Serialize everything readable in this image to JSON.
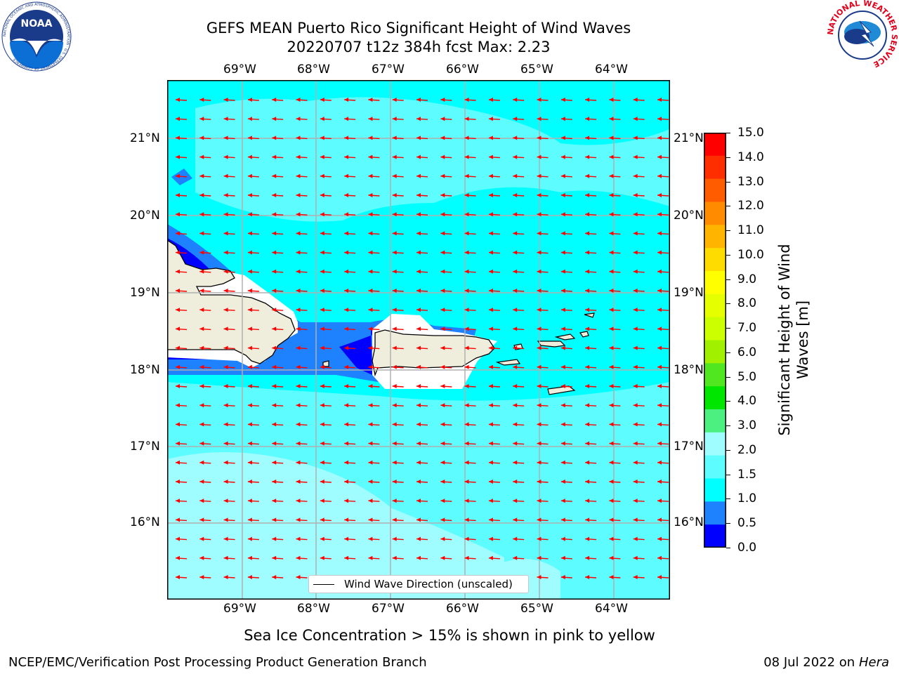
{
  "title": {
    "line1": "GEFS MEAN Puerto Rico Significant Height of Wind Waves",
    "line2": "20220707 t12z 384h fcst   Max: 2.23"
  },
  "map": {
    "lon_labels": [
      "69°W",
      "68°W",
      "67°W",
      "66°W",
      "65°W",
      "64°W"
    ],
    "lat_labels": [
      "21°N",
      "20°N",
      "19°N",
      "18°N",
      "17°N",
      "16°N"
    ],
    "legend_label": "Wind Wave Direction (unscaled)",
    "colors": {
      "ocean_base": "#00ffff",
      "ocean_low": "#9ffcff",
      "land": "#efeedc",
      "shallow": "#1e82ff",
      "very_low": "#0000ff",
      "arrow": "#ff0000",
      "grid": "#b0b0b0"
    }
  },
  "colorbar": {
    "label": "Significant Height of Wind Waves [m]",
    "label_line1": "Significant Height of Wind",
    "label_line2": "Waves [m]",
    "ticks": [
      "15.0",
      "14.0",
      "13.0",
      "12.0",
      "11.0",
      "10.0",
      "9.0",
      "8.0",
      "7.0",
      "6.0",
      "5.0",
      "4.0",
      "3.0",
      "2.0",
      "1.5",
      "1.0",
      "0.5",
      "0.0"
    ],
    "colors_top_to_bottom": [
      "#ff0000",
      "#ff2e00",
      "#ff5c00",
      "#ff8c00",
      "#ffb400",
      "#ffdc00",
      "#ffff00",
      "#e6ff00",
      "#ccff00",
      "#a0f000",
      "#50e620",
      "#00e600",
      "#4cf080",
      "#9ffcff",
      "#5cfcff",
      "#00ffff",
      "#1e82ff",
      "#0000ff"
    ]
  },
  "notes": {
    "sea_ice": "Sea Ice Concentration > 15% is shown in pink to yellow"
  },
  "footer": {
    "left": "NCEP/EMC/Verification Post Processing Product Generation Branch",
    "right_prefix": "08 Jul 2022 on ",
    "right_host": "Hera"
  },
  "logos": {
    "noaa_text": "NOAA",
    "noaa_ring": "NATIONAL OCEANIC AND ATMOSPHERIC ADMINISTRATION · U.S. DEPARTMENT OF COMMERCE",
    "nws_ring": "NATIONAL WEATHER SERVICE"
  }
}
